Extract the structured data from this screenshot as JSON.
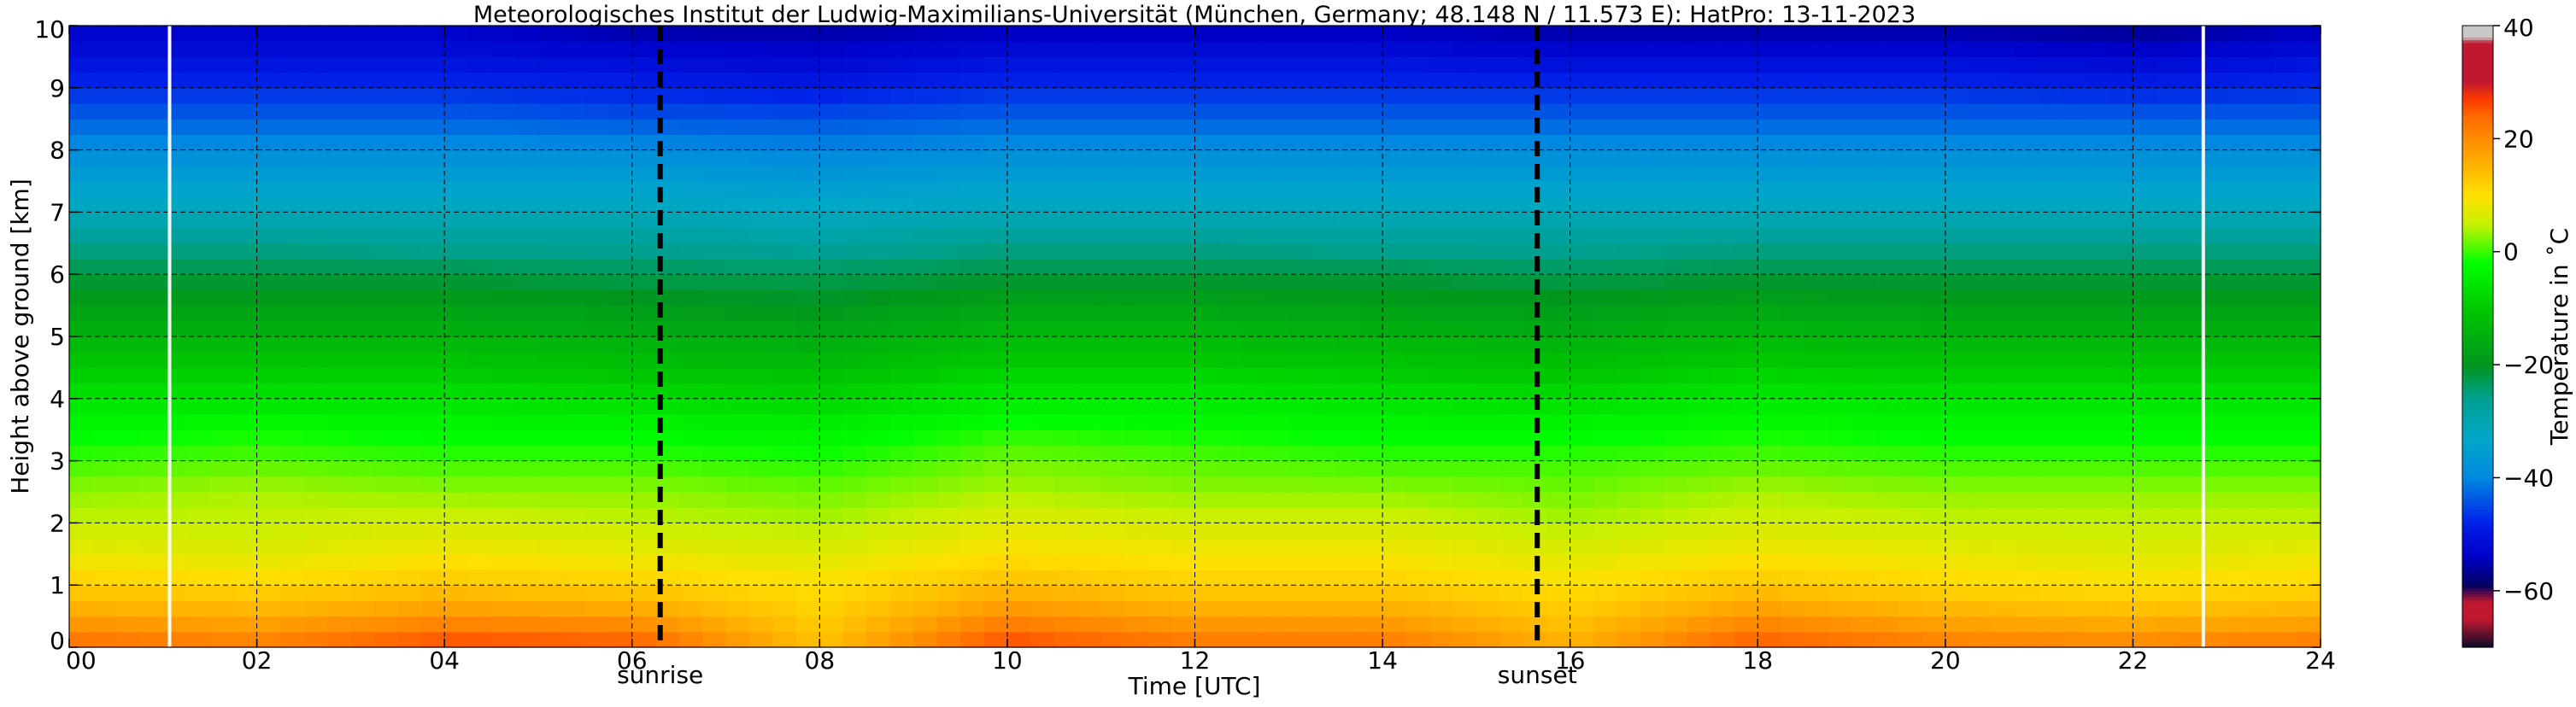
{
  "chart_data": {
    "type": "heatmap",
    "title": "Meteorologisches Institut der Ludwig-Maximilians-Universität (München, Germany; 48.148 N / 11.573 E):    HatPro: 13-11-2023",
    "xlabel": "Time [UTC]",
    "ylabel": "Height above ground [km]",
    "colorbar_label": "Temperature in ˚C",
    "xlim": [
      0,
      24
    ],
    "ylim": [
      0,
      10
    ],
    "x_ticks": [
      0,
      2,
      4,
      6,
      8,
      10,
      12,
      14,
      16,
      18,
      20,
      22,
      24
    ],
    "x_tick_labels": [
      "00",
      "02",
      "04",
      "06",
      "08",
      "10",
      "12",
      "14",
      "16",
      "18",
      "20",
      "22",
      "24"
    ],
    "y_ticks": [
      0,
      1,
      2,
      3,
      4,
      5,
      6,
      7,
      8,
      9,
      10
    ],
    "y_tick_labels": [
      "0",
      "1",
      "2",
      "3",
      "4",
      "5",
      "6",
      "7",
      "8",
      "9",
      "10"
    ],
    "grid": true,
    "clim": [
      -70,
      40
    ],
    "colorbar_ticks": [
      40,
      20,
      0,
      -20,
      -40,
      -60
    ],
    "colorbar_tick_labels": [
      "40",
      "20",
      "0",
      "−20",
      "−40",
      "−60"
    ],
    "events": [
      {
        "label": "sunrise",
        "time": 6.3
      },
      {
        "label": "sunset",
        "time": 15.65
      }
    ],
    "white_markers": [
      1.07,
      22.75
    ],
    "heights_km": [
      0,
      0.5,
      1,
      1.5,
      2,
      2.5,
      3,
      3.5,
      4,
      4.5,
      5,
      5.5,
      6,
      6.5,
      7,
      7.5,
      8,
      8.5,
      9,
      9.5,
      10
    ],
    "times_utc": [
      0,
      2,
      4,
      6,
      8,
      10,
      12,
      14,
      16,
      18,
      20,
      22,
      24
    ],
    "temperature_c": [
      [
        24,
        22,
        27,
        26,
        14,
        27,
        23,
        23,
        16,
        26,
        22,
        21,
        23
      ],
      [
        17,
        16,
        19,
        18,
        12,
        20,
        17,
        17,
        13,
        19,
        16,
        15,
        16
      ],
      [
        12,
        11,
        13,
        12,
        10,
        14,
        12,
        12,
        10,
        13,
        11,
        10,
        11
      ],
      [
        8,
        7,
        9,
        8,
        7,
        10,
        9,
        9,
        7,
        9,
        8,
        7,
        8
      ],
      [
        5,
        5,
        6,
        5,
        4,
        7,
        6,
        6,
        4,
        6,
        5,
        5,
        5
      ],
      [
        3,
        4,
        3,
        3,
        2,
        4,
        3,
        3,
        2,
        4,
        3,
        3,
        3
      ],
      [
        0,
        1,
        0,
        0,
        -1,
        2,
        1,
        0,
        0,
        1,
        0,
        0,
        0
      ],
      [
        -3,
        -2,
        -3,
        -3,
        -4,
        -1,
        -2,
        -3,
        -3,
        -2,
        -3,
        -3,
        -3
      ],
      [
        -6,
        -6,
        -6,
        -7,
        -8,
        -5,
        -5,
        -6,
        -7,
        -5,
        -6,
        -6,
        -6
      ],
      [
        -10,
        -10,
        -10,
        -11,
        -12,
        -9,
        -9,
        -10,
        -11,
        -9,
        -10,
        -10,
        -10
      ],
      [
        -14,
        -14,
        -14,
        -15,
        -16,
        -13,
        -13,
        -14,
        -15,
        -13,
        -14,
        -14,
        -14
      ],
      [
        -18,
        -18,
        -18,
        -19,
        -20,
        -17,
        -17,
        -18,
        -19,
        -17,
        -18,
        -18,
        -18
      ],
      [
        -22,
        -22,
        -22,
        -23,
        -23,
        -22,
        -22,
        -22,
        -23,
        -22,
        -22,
        -22,
        -22
      ],
      [
        -26,
        -26,
        -27,
        -27,
        -28,
        -26,
        -26,
        -27,
        -27,
        -26,
        -26,
        -26,
        -26
      ],
      [
        -31,
        -31,
        -31,
        -31,
        -32,
        -31,
        -31,
        -31,
        -31,
        -31,
        -31,
        -31,
        -31
      ],
      [
        -35,
        -35,
        -35,
        -35,
        -36,
        -35,
        -35,
        -35,
        -35,
        -35,
        -35,
        -35,
        -35
      ],
      [
        -39,
        -39,
        -39,
        -39,
        -40,
        -39,
        -39,
        -39,
        -39,
        -39,
        -39,
        -39,
        -39
      ],
      [
        -43,
        -43,
        -43,
        -44,
        -44,
        -43,
        -43,
        -43,
        -43,
        -43,
        -43,
        -43,
        -43
      ],
      [
        -47,
        -47,
        -47,
        -48,
        -49,
        -47,
        -47,
        -47,
        -47,
        -47,
        -47,
        -48,
        -47
      ],
      [
        -51,
        -51,
        -51,
        -52,
        -53,
        -51,
        -51,
        -51,
        -52,
        -52,
        -52,
        -53,
        -51
      ],
      [
        -54,
        -54,
        -54,
        -56,
        -56,
        -55,
        -55,
        -55,
        -56,
        -56,
        -56,
        -57,
        -55
      ]
    ],
    "colormap": [
      {
        "t": -70,
        "color": "#0a0a28"
      },
      {
        "t": -65,
        "color": "#c01830"
      },
      {
        "t": -62,
        "color": "#c01830"
      },
      {
        "t": -59,
        "color": "#000060"
      },
      {
        "t": -54,
        "color": "#0000c8"
      },
      {
        "t": -48,
        "color": "#0020e8"
      },
      {
        "t": -40,
        "color": "#0088e0"
      },
      {
        "t": -33,
        "color": "#00a8c8"
      },
      {
        "t": -26,
        "color": "#00a090"
      },
      {
        "t": -20,
        "color": "#00961e"
      },
      {
        "t": -10,
        "color": "#00c800"
      },
      {
        "t": -2,
        "color": "#00ff00"
      },
      {
        "t": 5,
        "color": "#c8f000"
      },
      {
        "t": 10,
        "color": "#ffe000"
      },
      {
        "t": 17,
        "color": "#ffa500"
      },
      {
        "t": 24,
        "color": "#ff6a00"
      },
      {
        "t": 27,
        "color": "#ff3a00"
      },
      {
        "t": 30,
        "color": "#c01830"
      },
      {
        "t": 37,
        "color": "#c01830"
      },
      {
        "t": 38,
        "color": "#c8c8c8"
      },
      {
        "t": 40,
        "color": "#c8c8c8"
      }
    ]
  }
}
